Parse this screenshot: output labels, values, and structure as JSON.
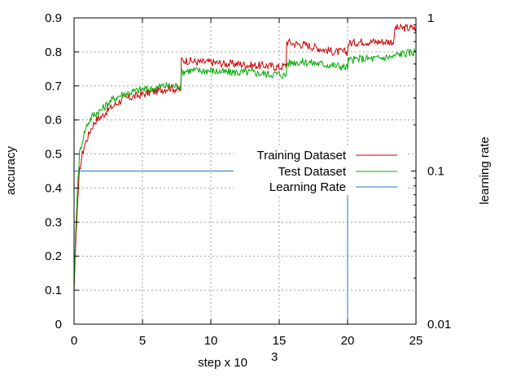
{
  "chart_data": {
    "type": "line",
    "xlabel": "step x 10",
    "xlabel_sup": "3",
    "ylabel": "accuracy",
    "y2label": "learning rate",
    "xlim": [
      0,
      25
    ],
    "ylim": [
      0,
      0.9
    ],
    "y2lim": [
      0.01,
      1
    ],
    "y2_scale": "log",
    "grid": true,
    "legend_position": "right-center",
    "x_ticks": [
      "0",
      "5",
      "10",
      "15",
      "20",
      "25"
    ],
    "y_ticks": [
      "0",
      "0.1",
      "0.2",
      "0.3",
      "0.4",
      "0.5",
      "0.6",
      "0.7",
      "0.8",
      "0.9"
    ],
    "y2_ticks": [
      "0.01",
      "0.1",
      "1"
    ],
    "series": [
      {
        "name": "Training Dataset",
        "color": "#cc0000",
        "axis": "y",
        "x": [
          0.0,
          0.1,
          0.25,
          0.4,
          0.6,
          0.8,
          1.0,
          1.3,
          1.6,
          2.0,
          2.5,
          3.0,
          3.5,
          4.0,
          4.5,
          5.0,
          5.5,
          6.0,
          6.5,
          7.0,
          7.5,
          7.8,
          7.85,
          8.2,
          9.0,
          10.0,
          11.0,
          12.0,
          13.0,
          14.0,
          15.0,
          15.5,
          15.55,
          16.0,
          17.0,
          18.0,
          19.0,
          19.9,
          20.0,
          20.05,
          21.0,
          22.0,
          23.0,
          23.4,
          23.45,
          24.0,
          25.0
        ],
        "y": [
          0.1,
          0.22,
          0.35,
          0.45,
          0.5,
          0.53,
          0.55,
          0.58,
          0.6,
          0.61,
          0.63,
          0.645,
          0.66,
          0.665,
          0.67,
          0.675,
          0.68,
          0.685,
          0.69,
          0.695,
          0.69,
          0.69,
          0.775,
          0.775,
          0.77,
          0.77,
          0.765,
          0.765,
          0.76,
          0.76,
          0.755,
          0.76,
          0.83,
          0.825,
          0.82,
          0.81,
          0.8,
          0.8,
          0.8,
          0.825,
          0.83,
          0.83,
          0.83,
          0.83,
          0.87,
          0.87,
          0.87
        ]
      },
      {
        "name": "Test Dataset",
        "color": "#00aa00",
        "axis": "y",
        "x": [
          0.0,
          0.1,
          0.25,
          0.4,
          0.6,
          0.8,
          1.0,
          1.3,
          1.6,
          2.0,
          2.5,
          3.0,
          3.5,
          4.0,
          4.5,
          5.0,
          5.5,
          6.0,
          6.5,
          7.0,
          7.5,
          7.8,
          7.85,
          8.2,
          9.0,
          10.0,
          11.0,
          12.0,
          13.0,
          14.0,
          15.0,
          15.5,
          15.55,
          16.0,
          17.0,
          18.0,
          19.0,
          19.9,
          20.0,
          20.05,
          21.0,
          22.0,
          23.0,
          23.4,
          23.45,
          24.0,
          25.0
        ],
        "y": [
          0.1,
          0.25,
          0.4,
          0.5,
          0.54,
          0.57,
          0.59,
          0.61,
          0.62,
          0.63,
          0.65,
          0.665,
          0.675,
          0.68,
          0.685,
          0.69,
          0.69,
          0.695,
          0.7,
          0.7,
          0.7,
          0.7,
          0.74,
          0.745,
          0.745,
          0.745,
          0.74,
          0.74,
          0.74,
          0.735,
          0.735,
          0.73,
          0.765,
          0.77,
          0.77,
          0.765,
          0.76,
          0.755,
          0.755,
          0.775,
          0.78,
          0.78,
          0.785,
          0.785,
          0.79,
          0.795,
          0.8
        ]
      },
      {
        "name": "Learning Rate",
        "color": "#1f77c4",
        "axis": "y2",
        "x": [
          0.0,
          20.0,
          20.0
        ],
        "y": [
          0.1,
          0.1,
          0.01
        ]
      }
    ]
  }
}
